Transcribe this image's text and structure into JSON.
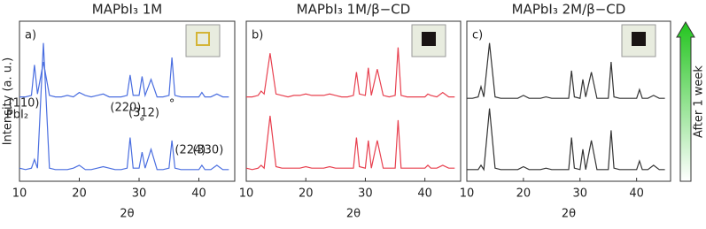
{
  "chart_data": [
    {
      "type": "line",
      "title": "MAPbI₃ 1M",
      "panel_label": "a)",
      "x_label": "2θ",
      "y_label": "Intensity (a. u.)",
      "x": [
        10,
        11,
        12,
        12.5,
        13,
        14,
        15,
        16,
        17,
        18,
        19,
        20,
        21,
        22,
        23,
        24,
        25,
        26,
        27,
        28,
        28.5,
        29,
        30,
        30.5,
        31,
        32,
        33,
        34,
        35,
        35.5,
        36,
        37,
        38,
        39,
        40,
        40.5,
        41,
        42,
        43,
        44,
        45
      ],
      "xlim": [
        10,
        46
      ],
      "xticks": [
        10,
        20,
        30,
        40
      ],
      "ylim": [
        0,
        110
      ],
      "annotations": [
        "PbI₂",
        "(110)",
        "(220)",
        "°",
        "(312)",
        "°",
        "(224)",
        "(330)"
      ],
      "series": [
        {
          "color": "#4a6ee0",
          "values": [
            58,
            58,
            59,
            80,
            60,
            82,
            59,
            58,
            58,
            59,
            58,
            61,
            59,
            58,
            59,
            60,
            58,
            58,
            58,
            59,
            73,
            59,
            59,
            72,
            59,
            70,
            58,
            58,
            59,
            85,
            59,
            58,
            58,
            58,
            58,
            61,
            58,
            58,
            60,
            58,
            58
          ]
        },
        {
          "color": "#4a6ee0",
          "values": [
            9,
            8,
            9,
            15,
            9,
            95,
            9,
            8,
            8,
            8,
            9,
            11,
            8,
            8,
            9,
            10,
            9,
            8,
            8,
            9,
            30,
            9,
            9,
            20,
            9,
            22,
            8,
            8,
            9,
            28,
            9,
            8,
            8,
            8,
            8,
            11,
            8,
            8,
            11,
            8,
            8
          ]
        }
      ]
    },
    {
      "type": "line",
      "title": "MAPbI₃ 1M/β−CD",
      "panel_label": "b)",
      "x_label": "2θ",
      "x": [
        10,
        11,
        12,
        12.5,
        13,
        14,
        15,
        16,
        17,
        18,
        19,
        20,
        21,
        22,
        23,
        24,
        25,
        26,
        27,
        28,
        28.5,
        29,
        30,
        30.5,
        31,
        32,
        33,
        34,
        35,
        35.5,
        36,
        37,
        38,
        39,
        40,
        40.5,
        41,
        42,
        43,
        44,
        45
      ],
      "xlim": [
        10,
        46
      ],
      "xticks": [
        10,
        20,
        30,
        40
      ],
      "ylim": [
        0,
        110
      ],
      "series": [
        {
          "color": "#e8404f",
          "values": [
            58,
            58,
            59,
            62,
            60,
            88,
            60,
            59,
            58,
            59,
            59,
            60,
            59,
            59,
            59,
            60,
            59,
            58,
            58,
            59,
            75,
            60,
            59,
            78,
            59,
            77,
            59,
            58,
            59,
            92,
            59,
            58,
            58,
            58,
            58,
            60,
            59,
            58,
            61,
            58,
            58
          ]
        },
        {
          "color": "#e8404f",
          "values": [
            9,
            8,
            9,
            11,
            9,
            45,
            10,
            9,
            9,
            9,
            9,
            10,
            9,
            9,
            9,
            10,
            9,
            9,
            9,
            9,
            30,
            10,
            9,
            28,
            9,
            28,
            9,
            9,
            9,
            42,
            9,
            9,
            9,
            9,
            9,
            11,
            9,
            9,
            11,
            9,
            9
          ]
        }
      ]
    },
    {
      "type": "line",
      "title": "MAPbI₃ 2M/β−CD",
      "panel_label": "c)",
      "x_label": "2θ",
      "side_arrow_label": "After 1 week",
      "x": [
        10,
        11,
        12,
        12.5,
        13,
        14,
        15,
        16,
        17,
        18,
        19,
        20,
        21,
        22,
        23,
        24,
        25,
        26,
        27,
        28,
        28.5,
        29,
        30,
        30.5,
        31,
        32,
        33,
        34,
        35,
        35.5,
        36,
        37,
        38,
        39,
        40,
        40.5,
        41,
        42,
        43,
        44,
        45
      ],
      "xlim": [
        10,
        46
      ],
      "xticks": [
        10,
        20,
        30,
        40
      ],
      "ylim": [
        0,
        110
      ],
      "series": [
        {
          "color": "#333333",
          "values": [
            57,
            57,
            58,
            65,
            58,
            95,
            58,
            57,
            57,
            57,
            57,
            59,
            57,
            57,
            57,
            58,
            57,
            57,
            57,
            57,
            76,
            58,
            57,
            70,
            58,
            75,
            57,
            57,
            57,
            82,
            58,
            57,
            57,
            57,
            57,
            63,
            57,
            57,
            59,
            57,
            57
          ]
        },
        {
          "color": "#333333",
          "values": [
            8,
            8,
            8,
            11,
            8,
            50,
            9,
            8,
            8,
            8,
            8,
            10,
            8,
            8,
            8,
            9,
            8,
            8,
            8,
            8,
            30,
            9,
            8,
            22,
            8,
            28,
            8,
            8,
            8,
            35,
            9,
            8,
            8,
            8,
            8,
            14,
            8,
            8,
            11,
            8,
            8
          ]
        }
      ]
    }
  ]
}
